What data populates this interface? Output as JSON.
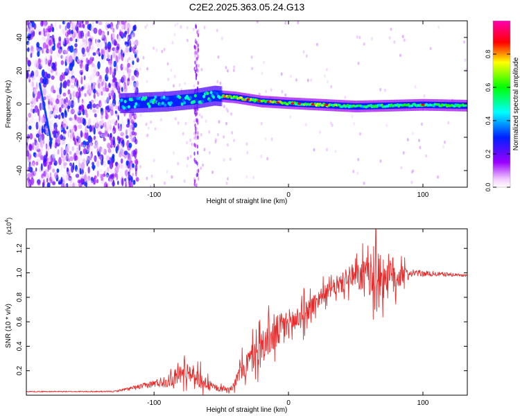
{
  "title": "C2E2.2025.363.05.24.G13",
  "colorbar": {
    "label": "Normalized spectral amplitude",
    "ticks": [
      0.0,
      0.2,
      0.4,
      0.6,
      0.8
    ],
    "tick_labels": [
      "0.0",
      "0.2",
      "0.4",
      "0.6",
      "0.8"
    ]
  },
  "chart_data": [
    {
      "type": "heatmap",
      "title": "C2E2.2025.363.05.24.G13",
      "xlabel": "Height of straight line (km)",
      "ylabel": "Frequency (Hz)",
      "xlim": [
        -195,
        133
      ],
      "ylim": [
        -50,
        50
      ],
      "xticks": [
        -100,
        0,
        100
      ],
      "xtick_labels": [
        "-100",
        "0",
        "100"
      ],
      "yticks": [
        -40,
        -20,
        0,
        20,
        40
      ],
      "ytick_labels": [
        "-40",
        "-20",
        "0",
        "20",
        "40"
      ],
      "colorscale": "rainbow",
      "zlim": [
        0,
        1
      ],
      "zlabel": "Normalized spectral amplitude",
      "band_center": [
        {
          "x": -120,
          "f": 0.5
        },
        {
          "x": -90,
          "f": 1.5
        },
        {
          "x": -70,
          "f": 3
        },
        {
          "x": -55,
          "f": 5
        },
        {
          "x": -40,
          "f": 4
        },
        {
          "x": -20,
          "f": 1.5
        },
        {
          "x": 0,
          "f": 0.5
        },
        {
          "x": 50,
          "f": -1.5
        },
        {
          "x": 100,
          "f": -0.5
        },
        {
          "x": 133,
          "f": -1
        }
      ],
      "noise_region_km": [
        -195,
        -120
      ],
      "spike_km": [
        -70,
        -67
      ]
    },
    {
      "type": "line",
      "xlabel": "Height of straight line (km)",
      "ylabel": "SNR (10 * v/v)",
      "exponent_label": "(x10",
      "exponent_power": "4",
      "exponent_close": ")",
      "xlim": [
        -195,
        133
      ],
      "ylim": [
        0,
        1.36
      ],
      "xticks": [
        -100,
        0,
        100
      ],
      "xtick_labels": [
        "-100",
        "0",
        "100"
      ],
      "yticks": [
        0.2,
        0.4,
        0.6,
        0.8,
        1.0,
        1.2
      ],
      "ytick_labels": [
        "0.2",
        "0.4",
        "0.6",
        "0.8",
        "1.0",
        "1.2"
      ],
      "color": "#e82a2a",
      "series": [
        {
          "name": "SNR",
          "envelope": [
            {
              "x": -195,
              "y": 0.03
            },
            {
              "x": -130,
              "y": 0.03
            },
            {
              "x": -110,
              "y": 0.07
            },
            {
              "x": -90,
              "y": 0.12
            },
            {
              "x": -75,
              "y": 0.2
            },
            {
              "x": -62,
              "y": 0.1
            },
            {
              "x": -52,
              "y": 0.05
            },
            {
              "x": -42,
              "y": 0.06
            },
            {
              "x": -35,
              "y": 0.2
            },
            {
              "x": -20,
              "y": 0.4
            },
            {
              "x": -5,
              "y": 0.55
            },
            {
              "x": 10,
              "y": 0.65
            },
            {
              "x": 25,
              "y": 0.82
            },
            {
              "x": 45,
              "y": 0.95
            },
            {
              "x": 60,
              "y": 0.98
            },
            {
              "x": 75,
              "y": 0.97
            },
            {
              "x": 88,
              "y": 1.0
            },
            {
              "x": 110,
              "y": 0.99
            },
            {
              "x": 133,
              "y": 0.98
            }
          ],
          "amplitude": [
            {
              "x": -195,
              "a": 0.004
            },
            {
              "x": -130,
              "a": 0.005
            },
            {
              "x": -100,
              "a": 0.03
            },
            {
              "x": -80,
              "a": 0.08
            },
            {
              "x": -65,
              "a": 0.07
            },
            {
              "x": -55,
              "a": 0.02
            },
            {
              "x": -42,
              "a": 0.02
            },
            {
              "x": -30,
              "a": 0.12
            },
            {
              "x": -10,
              "a": 0.14
            },
            {
              "x": 10,
              "a": 0.1
            },
            {
              "x": 30,
              "a": 0.06
            },
            {
              "x": 50,
              "a": 0.1
            },
            {
              "x": 62,
              "a": 0.18
            },
            {
              "x": 72,
              "a": 0.2
            },
            {
              "x": 82,
              "a": 0.14
            },
            {
              "x": 88,
              "a": 0.03
            },
            {
              "x": 133,
              "a": 0.01
            }
          ],
          "peak_km": 65,
          "peak_value": 1.36
        }
      ]
    }
  ]
}
